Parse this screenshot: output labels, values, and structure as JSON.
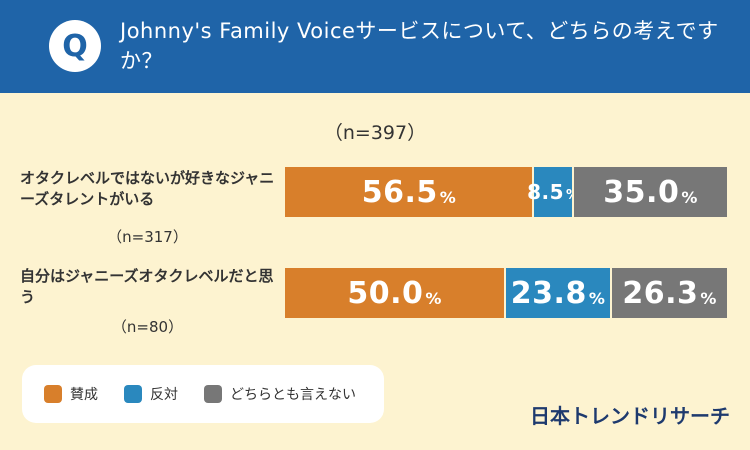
{
  "header": {
    "badge": "Q",
    "title": "Johnny's Family Voiceサービスについて、どちらの考えですか？"
  },
  "chart_data": {
    "type": "bar",
    "stacked": true,
    "orientation": "horizontal",
    "total_n": "（n=397）",
    "categories": [
      {
        "label": "オタクレベルではないが好きなジャニーズタレントがいる",
        "n": "（n=317）"
      },
      {
        "label": "自分はジャニーズオタクレベルだと思う",
        "n": "（n=80）"
      }
    ],
    "series": [
      {
        "name": "賛成",
        "color": "#d87f2b",
        "values": [
          56.5,
          50.0
        ]
      },
      {
        "name": "反対",
        "color": "#2a88be",
        "values": [
          8.5,
          23.8
        ]
      },
      {
        "name": "どちらとも言えない",
        "color": "#777777",
        "values": [
          35.0,
          26.3
        ]
      }
    ],
    "percent_sign": "%"
  },
  "legend": {
    "items": [
      {
        "label": "賛成",
        "color": "#d87f2b"
      },
      {
        "label": "反対",
        "color": "#2a88be"
      },
      {
        "label": "どちらとも言えない",
        "color": "#777777"
      }
    ]
  },
  "brand": "日本トレンドリサーチ"
}
